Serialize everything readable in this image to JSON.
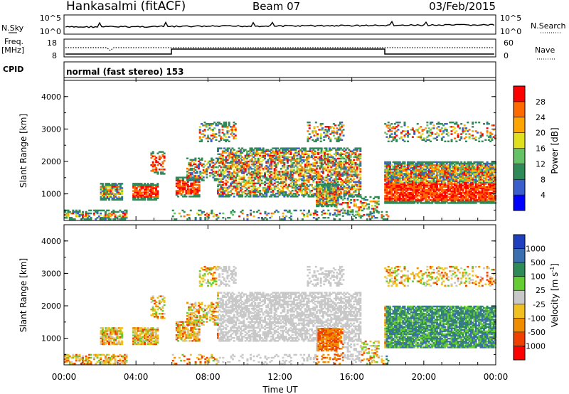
{
  "header": {
    "station": "Hankasalmi (fitACF)",
    "beam": "Beam 07",
    "date": "03/Feb/2015"
  },
  "noise_panel": {
    "left_label": "N.Sky",
    "right_label": "N.Search",
    "left_ticks": [
      "10^5",
      "10^0"
    ],
    "right_ticks": [
      "10^5",
      "10^0"
    ]
  },
  "freq_panel": {
    "label_line1": "Freq.",
    "label_line2": "[MHz]",
    "left_ticks": [
      "18",
      "8"
    ],
    "right_ticks": [
      "60",
      "0"
    ],
    "right_label": "Nave"
  },
  "cpid_panel": {
    "label": "CPID",
    "mode_text": "normal (fast stereo) 153"
  },
  "chart_data": [
    {
      "type": "heatmap",
      "quantity": "Power",
      "ylabel": "Slant Range [km]",
      "ylim": [
        180,
        4500
      ],
      "yticks": [
        "1000",
        "2000",
        "3000",
        "4000"
      ],
      "colorbar_label": "Power [dB]",
      "colorbar_ticks": [
        "4",
        "8",
        "12",
        "16",
        "20",
        "24",
        "28"
      ],
      "colorbar_colors": [
        "#0000ff",
        "#3a5fcd",
        "#2e8b57",
        "#66c266",
        "#e0e020",
        "#ffa500",
        "#ff6a00",
        "#ff0000"
      ],
      "colorbar_range": [
        0,
        30
      ]
    },
    {
      "type": "heatmap",
      "quantity": "Velocity",
      "ylabel": "Slant Range [km]",
      "ylim": [
        180,
        4500
      ],
      "yticks": [
        "1000",
        "2000",
        "3000",
        "4000"
      ],
      "colorbar_label": "Velocity [m s^-1]",
      "colorbar_ticks": [
        "1000",
        "500",
        "100",
        "25",
        "-25",
        "-100",
        "-500",
        "-1000"
      ],
      "colorbar_colors": [
        "#1f3fbf",
        "#3c6fb0",
        "#2e8b57",
        "#66cc33",
        "#c8c8c8",
        "#f0c020",
        "#f08c00",
        "#f04000",
        "#ff0000"
      ],
      "xlabel": "Time UT",
      "xticks": [
        "00:00",
        "04:00",
        "08:00",
        "12:00",
        "16:00",
        "20:00",
        "00:00"
      ],
      "xlim_hours": [
        0,
        24
      ]
    }
  ]
}
